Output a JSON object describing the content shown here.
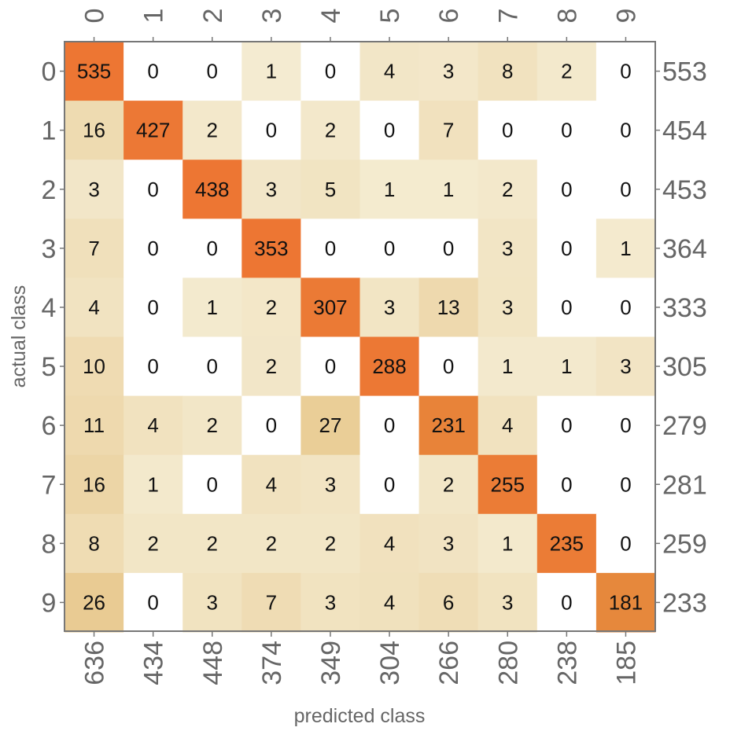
{
  "chart_data": {
    "type": "heatmap",
    "title": "",
    "xlabel": "predicted class",
    "ylabel": "actual class",
    "classes": [
      "0",
      "1",
      "2",
      "3",
      "4",
      "5",
      "6",
      "7",
      "8",
      "9"
    ],
    "matrix": [
      [
        535,
        0,
        0,
        1,
        0,
        4,
        3,
        8,
        2,
        0
      ],
      [
        16,
        427,
        2,
        0,
        2,
        0,
        7,
        0,
        0,
        0
      ],
      [
        3,
        0,
        438,
        3,
        5,
        1,
        1,
        2,
        0,
        0
      ],
      [
        7,
        0,
        0,
        353,
        0,
        0,
        0,
        3,
        0,
        1
      ],
      [
        4,
        0,
        1,
        2,
        307,
        3,
        13,
        3,
        0,
        0
      ],
      [
        10,
        0,
        0,
        2,
        0,
        288,
        0,
        1,
        1,
        3
      ],
      [
        11,
        4,
        2,
        0,
        27,
        0,
        231,
        4,
        0,
        0
      ],
      [
        16,
        1,
        0,
        4,
        3,
        0,
        2,
        255,
        0,
        0
      ],
      [
        8,
        2,
        2,
        2,
        2,
        4,
        3,
        1,
        235,
        0
      ],
      [
        26,
        0,
        3,
        7,
        3,
        4,
        6,
        3,
        0,
        181
      ]
    ],
    "row_totals": [
      "553",
      "454",
      "453",
      "364",
      "333",
      "305",
      "279",
      "281",
      "259",
      "233"
    ],
    "column_totals": [
      "636",
      "434",
      "448",
      "374",
      "349",
      "304",
      "266",
      "280",
      "238",
      "185"
    ],
    "colors": {
      "low": "#f6f1dc",
      "mid": "#dca549",
      "high": "#ee7332",
      "zero": "#ffffff",
      "frame": "#777777",
      "text": "#111111",
      "tick_text": "#666666"
    }
  }
}
